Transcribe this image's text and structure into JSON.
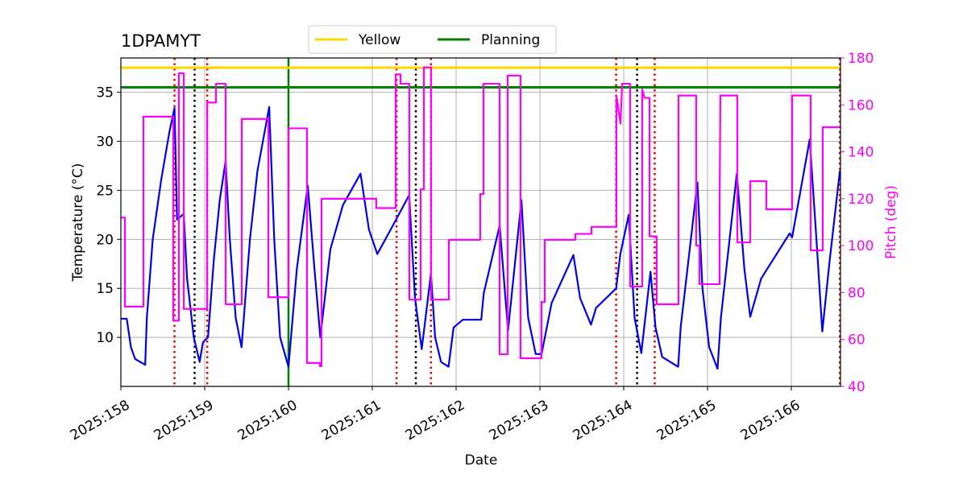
{
  "chart_data": {
    "type": "line",
    "title": "1DPAMYT",
    "xlabel": "Date",
    "ylabel": "Temperature (°C)",
    "y2label": "Pitch (deg)",
    "xlim": [
      158.0,
      166.587
    ],
    "ylim": [
      5.0,
      38.5
    ],
    "y2lim": [
      40,
      180
    ],
    "grid": true,
    "legend": "upper center",
    "xticks": [
      {
        "value": 158,
        "label": "2025:158"
      },
      {
        "value": 159,
        "label": "2025:159"
      },
      {
        "value": 160,
        "label": "2025:160"
      },
      {
        "value": 161,
        "label": "2025:161"
      },
      {
        "value": 162,
        "label": "2025:162"
      },
      {
        "value": 163,
        "label": "2025:163"
      },
      {
        "value": 164,
        "label": "2025:164"
      },
      {
        "value": 165,
        "label": "2025:165"
      },
      {
        "value": 166,
        "label": "2025:166"
      }
    ],
    "yticks": [
      10,
      15,
      20,
      25,
      30,
      35
    ],
    "y2ticks": [
      40,
      60,
      80,
      100,
      120,
      140,
      160,
      180
    ],
    "hlines": [
      {
        "name": "Yellow",
        "color": "#ffd700",
        "y": 37.5
      },
      {
        "name": "Planning",
        "color": "#008000",
        "y": 35.5
      }
    ],
    "vlines": [
      {
        "x": 160.0,
        "color": "#008000",
        "style": "solid"
      },
      {
        "x": 158.64,
        "color": "#ee0000",
        "style": "dotted"
      },
      {
        "x": 159.03,
        "color": "#ee0000",
        "style": "dotted"
      },
      {
        "x": 161.29,
        "color": "#ee0000",
        "style": "dotted"
      },
      {
        "x": 161.7,
        "color": "#ee0000",
        "style": "dotted"
      },
      {
        "x": 163.91,
        "color": "#ee0000",
        "style": "dotted"
      },
      {
        "x": 164.37,
        "color": "#ee0000",
        "style": "dotted"
      },
      {
        "x": 166.58,
        "color": "#ee0000",
        "style": "dotted"
      },
      {
        "x": 158.88,
        "color": "#000000",
        "style": "dotted"
      },
      {
        "x": 161.52,
        "color": "#000000",
        "style": "dotted"
      },
      {
        "x": 164.16,
        "color": "#000000",
        "style": "dotted"
      }
    ],
    "series": [
      {
        "color": "#0000ee",
        "axis": "y",
        "x": [
          158.0,
          158.07,
          158.12,
          158.17,
          158.29,
          158.31,
          158.38,
          158.48,
          158.58,
          158.64,
          158.67,
          158.75,
          158.79,
          158.87,
          158.94,
          158.98,
          159.04,
          159.11,
          159.18,
          159.25,
          159.3,
          159.37,
          159.44,
          159.54,
          159.63,
          159.77,
          159.83,
          159.9,
          160.0,
          160.1,
          160.23,
          160.31,
          160.38,
          160.5,
          160.65,
          160.86,
          160.96,
          161.06,
          161.22,
          161.44,
          161.51,
          161.59,
          161.7,
          161.75,
          161.82,
          161.91,
          161.97,
          162.08,
          162.3,
          162.33,
          162.52,
          162.62,
          162.78,
          162.86,
          162.95,
          163.02,
          163.14,
          163.4,
          163.48,
          163.61,
          163.67,
          163.91,
          163.96,
          164.06,
          164.13,
          164.21,
          164.32,
          164.38,
          164.46,
          164.65,
          164.68,
          164.88,
          164.94,
          165.02,
          165.12,
          165.16,
          165.35,
          165.44,
          165.51,
          165.64,
          165.98,
          166.01,
          166.22,
          166.3,
          166.37,
          166.46,
          166.58
        ],
        "values": [
          11.9,
          11.9,
          9.0,
          7.8,
          7.2,
          12.0,
          20,
          26,
          31,
          33.4,
          22,
          22.6,
          16,
          10,
          7.5,
          9.5,
          10.0,
          18,
          24,
          28,
          20,
          12,
          9.0,
          20,
          27,
          33.5,
          20,
          10,
          7.0,
          17,
          25.5,
          17,
          10,
          19,
          23.5,
          26.7,
          21,
          18.5,
          21,
          24.5,
          14,
          8.8,
          16.5,
          10,
          7.5,
          7.0,
          11,
          11.8,
          11.8,
          14.5,
          21.4,
          10.7,
          24,
          12,
          8.3,
          8.3,
          13.5,
          18.4,
          14,
          11.3,
          13,
          15,
          18.5,
          22.5,
          12,
          8.4,
          16.7,
          11,
          8,
          7.0,
          11,
          25.8,
          15,
          9,
          6.8,
          12,
          26.7,
          17,
          12.1,
          16,
          20.6,
          20.2,
          30.2,
          20,
          10.6,
          18,
          27
        ]
      },
      {
        "color": "#ff00ff",
        "axis": "y2",
        "x": [
          158.0,
          158.048,
          158.048,
          158.269,
          158.269,
          158.625,
          158.625,
          158.692,
          158.692,
          158.75,
          158.75,
          159.029,
          159.029,
          159.135,
          159.135,
          159.25,
          159.25,
          159.442,
          159.442,
          159.76,
          159.76,
          160.0,
          160.0,
          160.221,
          160.221,
          160.375,
          160.375,
          160.394,
          160.394,
          161.048,
          161.048,
          161.279,
          161.279,
          161.337,
          161.337,
          161.442,
          161.442,
          161.577,
          161.577,
          161.615,
          161.615,
          161.702,
          161.702,
          161.913,
          161.913,
          162.288,
          162.288,
          162.327,
          162.327,
          162.519,
          162.519,
          162.615,
          162.615,
          162.769,
          162.769,
          163.019,
          163.019,
          163.058,
          163.058,
          163.423,
          163.423,
          163.615,
          163.615,
          163.913,
          163.913,
          163.962,
          163.981,
          164.077,
          164.077,
          164.221,
          164.221,
          164.25,
          164.308,
          164.308,
          164.394,
          164.394,
          164.654,
          164.654,
          164.865,
          164.865,
          164.904,
          164.904,
          165.144,
          165.144,
          165.154,
          165.356,
          165.356,
          165.51,
          165.51,
          165.702,
          165.702,
          166.01,
          166.01,
          166.231,
          166.231,
          166.375,
          166.375,
          166.587
        ],
        "values": [
          112,
          112,
          74,
          74,
          155,
          155,
          68,
          68,
          173.5,
          173.5,
          73,
          73,
          161,
          161,
          169,
          169,
          75,
          75,
          154,
          154,
          78,
          78,
          150,
          150,
          50,
          50,
          48.6,
          48.6,
          120,
          120,
          116,
          116,
          173,
          173,
          169,
          169,
          77,
          77,
          124,
          124,
          176,
          176,
          77,
          77,
          102.5,
          102.5,
          122,
          122,
          169,
          169,
          53.7,
          53.7,
          172.5,
          172.5,
          52,
          52,
          76,
          76,
          102.5,
          102.5,
          105,
          105,
          108,
          108,
          164,
          152,
          169,
          169,
          82.6,
          82.6,
          166.6,
          163,
          163,
          104,
          104,
          75,
          75,
          164,
          164,
          100,
          100,
          83.6,
          83.6,
          115,
          164,
          164,
          101.4,
          101.4,
          127.5,
          127.5,
          115.5,
          115.5,
          164,
          164,
          98,
          98,
          150.5,
          150.5
        ]
      }
    ]
  }
}
